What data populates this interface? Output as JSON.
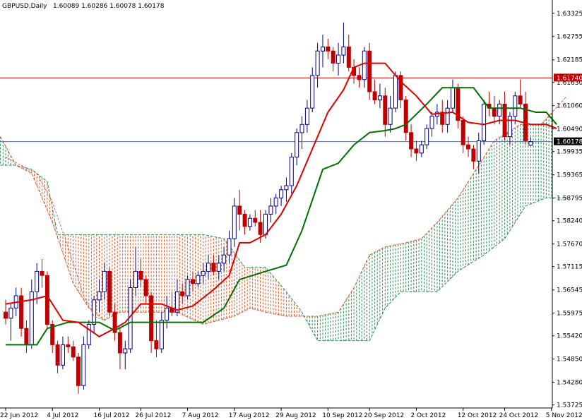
{
  "header": {
    "symbol": "GBPUSD,Daily",
    "ohlc": "1.60089 1.60286 1.60078 1.60178"
  },
  "colors": {
    "background": "#ffffff",
    "axis": "#000000",
    "bull_candle_body": "#ffffff",
    "bull_candle_border": "#00008b",
    "bear_candle_body": "#c00000",
    "bear_candle_border": "#c00000",
    "tenkan": "#e00000",
    "kijun": "#007000",
    "chikou_line": "#c86a5a",
    "cloud_bull": "#2e8b57",
    "cloud_bear": "#e05a2a",
    "hline": "#c00000",
    "price_line": "#5a6e9a",
    "price_tag_bg": "#000000",
    "hline_tag_bg": "#c00000"
  },
  "chart_data": {
    "type": "candlestick",
    "instrument": "GBPUSD",
    "timeframe": "Daily",
    "ylim": [
      1.5365,
      1.6365
    ],
    "y_ticks": [
      "1.63325",
      "1.62755",
      "1.62185",
      "1.61630",
      "1.61060",
      "1.60490",
      "1.59935",
      "1.59365",
      "1.58795",
      "1.58240",
      "1.57670",
      "1.57115",
      "1.56545",
      "1.55975",
      "1.55420",
      "1.54850",
      "1.54280",
      "1.53725"
    ],
    "x_ticks": [
      "22 Jun 2012",
      "4 Jul 2012",
      "16 Jul 2012",
      "26 Jul 2012",
      "7 Aug 2012",
      "17 Aug 2012",
      "29 Aug 2012",
      "10 Sep 2012",
      "20 Sep 2012",
      "2 Oct 2012",
      "12 Oct 2012",
      "24 Oct 2012",
      "5 Nov 2012"
    ],
    "x_tick_bars": [
      0,
      9,
      18,
      26,
      35,
      44,
      53,
      62,
      70,
      79,
      88,
      96,
      105
    ],
    "horizontal_line": {
      "value": 1.6174,
      "label": "1.61740"
    },
    "last_price": {
      "value": 1.60178,
      "label": "1.60178"
    },
    "candles": [
      {
        "o": 1.56,
        "h": 1.563,
        "l": 1.557,
        "c": 1.5585
      },
      {
        "o": 1.5585,
        "h": 1.562,
        "l": 1.553,
        "c": 1.561
      },
      {
        "o": 1.561,
        "h": 1.566,
        "l": 1.559,
        "c": 1.564
      },
      {
        "o": 1.564,
        "h": 1.566,
        "l": 1.554,
        "c": 1.556
      },
      {
        "o": 1.556,
        "h": 1.558,
        "l": 1.55,
        "c": 1.552
      },
      {
        "o": 1.552,
        "h": 1.568,
        "l": 1.551,
        "c": 1.565
      },
      {
        "o": 1.565,
        "h": 1.572,
        "l": 1.562,
        "c": 1.57
      },
      {
        "o": 1.57,
        "h": 1.573,
        "l": 1.566,
        "c": 1.569
      },
      {
        "o": 1.569,
        "h": 1.57,
        "l": 1.556,
        "c": 1.557
      },
      {
        "o": 1.557,
        "h": 1.558,
        "l": 1.55,
        "c": 1.552
      },
      {
        "o": 1.552,
        "h": 1.553,
        "l": 1.545,
        "c": 1.547
      },
      {
        "o": 1.547,
        "h": 1.554,
        "l": 1.546,
        "c": 1.552
      },
      {
        "o": 1.552,
        "h": 1.554,
        "l": 1.55,
        "c": 1.5515
      },
      {
        "o": 1.5515,
        "h": 1.553,
        "l": 1.548,
        "c": 1.549
      },
      {
        "o": 1.549,
        "h": 1.55,
        "l": 1.54,
        "c": 1.542
      },
      {
        "o": 1.542,
        "h": 1.554,
        "l": 1.541,
        "c": 1.552
      },
      {
        "o": 1.552,
        "h": 1.558,
        "l": 1.551,
        "c": 1.557
      },
      {
        "o": 1.557,
        "h": 1.564,
        "l": 1.555,
        "c": 1.563
      },
      {
        "o": 1.563,
        "h": 1.568,
        "l": 1.56,
        "c": 1.565
      },
      {
        "o": 1.565,
        "h": 1.572,
        "l": 1.563,
        "c": 1.57
      },
      {
        "o": 1.57,
        "h": 1.571,
        "l": 1.559,
        "c": 1.56
      },
      {
        "o": 1.56,
        "h": 1.562,
        "l": 1.553,
        "c": 1.555
      },
      {
        "o": 1.555,
        "h": 1.556,
        "l": 1.546,
        "c": 1.55
      },
      {
        "o": 1.55,
        "h": 1.553,
        "l": 1.546,
        "c": 1.551
      },
      {
        "o": 1.551,
        "h": 1.568,
        "l": 1.55,
        "c": 1.566
      },
      {
        "o": 1.566,
        "h": 1.576,
        "l": 1.564,
        "c": 1.57
      },
      {
        "o": 1.57,
        "h": 1.573,
        "l": 1.566,
        "c": 1.568
      },
      {
        "o": 1.568,
        "h": 1.569,
        "l": 1.562,
        "c": 1.564
      },
      {
        "o": 1.564,
        "h": 1.565,
        "l": 1.55,
        "c": 1.553
      },
      {
        "o": 1.553,
        "h": 1.558,
        "l": 1.549,
        "c": 1.551
      },
      {
        "o": 1.551,
        "h": 1.56,
        "l": 1.55,
        "c": 1.558
      },
      {
        "o": 1.558,
        "h": 1.564,
        "l": 1.556,
        "c": 1.561
      },
      {
        "o": 1.561,
        "h": 1.565,
        "l": 1.559,
        "c": 1.56
      },
      {
        "o": 1.56,
        "h": 1.568,
        "l": 1.559,
        "c": 1.565
      },
      {
        "o": 1.565,
        "h": 1.567,
        "l": 1.562,
        "c": 1.564
      },
      {
        "o": 1.564,
        "h": 1.569,
        "l": 1.563,
        "c": 1.568
      },
      {
        "o": 1.568,
        "h": 1.57,
        "l": 1.565,
        "c": 1.567
      },
      {
        "o": 1.567,
        "h": 1.57,
        "l": 1.566,
        "c": 1.569
      },
      {
        "o": 1.569,
        "h": 1.572,
        "l": 1.567,
        "c": 1.57
      },
      {
        "o": 1.57,
        "h": 1.574,
        "l": 1.568,
        "c": 1.572
      },
      {
        "o": 1.572,
        "h": 1.574,
        "l": 1.569,
        "c": 1.57
      },
      {
        "o": 1.57,
        "h": 1.574,
        "l": 1.568,
        "c": 1.572
      },
      {
        "o": 1.572,
        "h": 1.576,
        "l": 1.57,
        "c": 1.574
      },
      {
        "o": 1.574,
        "h": 1.58,
        "l": 1.572,
        "c": 1.578
      },
      {
        "o": 1.578,
        "h": 1.588,
        "l": 1.576,
        "c": 1.586
      },
      {
        "o": 1.586,
        "h": 1.59,
        "l": 1.58,
        "c": 1.584
      },
      {
        "o": 1.584,
        "h": 1.585,
        "l": 1.579,
        "c": 1.581
      },
      {
        "o": 1.581,
        "h": 1.584,
        "l": 1.58,
        "c": 1.583
      },
      {
        "o": 1.583,
        "h": 1.585,
        "l": 1.581,
        "c": 1.582
      },
      {
        "o": 1.582,
        "h": 1.585,
        "l": 1.577,
        "c": 1.579
      },
      {
        "o": 1.579,
        "h": 1.585,
        "l": 1.578,
        "c": 1.584
      },
      {
        "o": 1.584,
        "h": 1.588,
        "l": 1.582,
        "c": 1.586
      },
      {
        "o": 1.586,
        "h": 1.589,
        "l": 1.584,
        "c": 1.588
      },
      {
        "o": 1.588,
        "h": 1.591,
        "l": 1.586,
        "c": 1.59
      },
      {
        "o": 1.59,
        "h": 1.593,
        "l": 1.587,
        "c": 1.591
      },
      {
        "o": 1.591,
        "h": 1.599,
        "l": 1.589,
        "c": 1.598
      },
      {
        "o": 1.598,
        "h": 1.605,
        "l": 1.596,
        "c": 1.604
      },
      {
        "o": 1.604,
        "h": 1.608,
        "l": 1.6,
        "c": 1.606
      },
      {
        "o": 1.606,
        "h": 1.612,
        "l": 1.604,
        "c": 1.61
      },
      {
        "o": 1.61,
        "h": 1.62,
        "l": 1.609,
        "c": 1.618
      },
      {
        "o": 1.618,
        "h": 1.626,
        "l": 1.615,
        "c": 1.624
      },
      {
        "o": 1.624,
        "h": 1.628,
        "l": 1.62,
        "c": 1.625
      },
      {
        "o": 1.625,
        "h": 1.627,
        "l": 1.622,
        "c": 1.624
      },
      {
        "o": 1.624,
        "h": 1.625,
        "l": 1.619,
        "c": 1.621
      },
      {
        "o": 1.621,
        "h": 1.626,
        "l": 1.618,
        "c": 1.623
      },
      {
        "o": 1.623,
        "h": 1.631,
        "l": 1.621,
        "c": 1.625
      },
      {
        "o": 1.625,
        "h": 1.628,
        "l": 1.619,
        "c": 1.62
      },
      {
        "o": 1.62,
        "h": 1.622,
        "l": 1.616,
        "c": 1.618
      },
      {
        "o": 1.618,
        "h": 1.62,
        "l": 1.615,
        "c": 1.617
      },
      {
        "o": 1.617,
        "h": 1.625,
        "l": 1.615,
        "c": 1.624
      },
      {
        "o": 1.624,
        "h": 1.626,
        "l": 1.612,
        "c": 1.614
      },
      {
        "o": 1.614,
        "h": 1.617,
        "l": 1.611,
        "c": 1.612
      },
      {
        "o": 1.612,
        "h": 1.616,
        "l": 1.61,
        "c": 1.613
      },
      {
        "o": 1.613,
        "h": 1.615,
        "l": 1.603,
        "c": 1.606
      },
      {
        "o": 1.606,
        "h": 1.613,
        "l": 1.604,
        "c": 1.61
      },
      {
        "o": 1.61,
        "h": 1.619,
        "l": 1.609,
        "c": 1.618
      },
      {
        "o": 1.618,
        "h": 1.619,
        "l": 1.61,
        "c": 1.612
      },
      {
        "o": 1.612,
        "h": 1.613,
        "l": 1.602,
        "c": 1.604
      },
      {
        "o": 1.604,
        "h": 1.606,
        "l": 1.598,
        "c": 1.6
      },
      {
        "o": 1.6,
        "h": 1.602,
        "l": 1.597,
        "c": 1.599
      },
      {
        "o": 1.599,
        "h": 1.602,
        "l": 1.598,
        "c": 1.601
      },
      {
        "o": 1.601,
        "h": 1.606,
        "l": 1.6,
        "c": 1.605
      },
      {
        "o": 1.605,
        "h": 1.609,
        "l": 1.603,
        "c": 1.608
      },
      {
        "o": 1.608,
        "h": 1.611,
        "l": 1.606,
        "c": 1.609
      },
      {
        "o": 1.609,
        "h": 1.612,
        "l": 1.604,
        "c": 1.606
      },
      {
        "o": 1.606,
        "h": 1.612,
        "l": 1.604,
        "c": 1.61
      },
      {
        "o": 1.61,
        "h": 1.617,
        "l": 1.609,
        "c": 1.615
      },
      {
        "o": 1.615,
        "h": 1.616,
        "l": 1.605,
        "c": 1.607
      },
      {
        "o": 1.607,
        "h": 1.608,
        "l": 1.599,
        "c": 1.601
      },
      {
        "o": 1.601,
        "h": 1.603,
        "l": 1.598,
        "c": 1.6
      },
      {
        "o": 1.6,
        "h": 1.601,
        "l": 1.595,
        "c": 1.597
      },
      {
        "o": 1.597,
        "h": 1.604,
        "l": 1.594,
        "c": 1.602
      },
      {
        "o": 1.602,
        "h": 1.612,
        "l": 1.601,
        "c": 1.611
      },
      {
        "o": 1.611,
        "h": 1.614,
        "l": 1.608,
        "c": 1.61
      },
      {
        "o": 1.61,
        "h": 1.613,
        "l": 1.606,
        "c": 1.608
      },
      {
        "o": 1.608,
        "h": 1.612,
        "l": 1.606,
        "c": 1.611
      },
      {
        "o": 1.611,
        "h": 1.614,
        "l": 1.602,
        "c": 1.603
      },
      {
        "o": 1.603,
        "h": 1.609,
        "l": 1.601,
        "c": 1.608
      },
      {
        "o": 1.608,
        "h": 1.614,
        "l": 1.606,
        "c": 1.613
      },
      {
        "o": 1.613,
        "h": 1.617,
        "l": 1.61,
        "c": 1.611
      },
      {
        "o": 1.611,
        "h": 1.614,
        "l": 1.601,
        "c": 1.602
      },
      {
        "o": 1.6009,
        "h": 1.60286,
        "l": 1.60078,
        "c": 1.60178
      }
    ],
    "tenkan": [
      {
        "x": 0,
        "y": 1.562
      },
      {
        "x": 5,
        "y": 1.563
      },
      {
        "x": 8,
        "y": 1.564
      },
      {
        "x": 11,
        "y": 1.558
      },
      {
        "x": 14,
        "y": 1.5575
      },
      {
        "x": 18,
        "y": 1.554
      },
      {
        "x": 21,
        "y": 1.556
      },
      {
        "x": 23,
        "y": 1.5575
      },
      {
        "x": 26,
        "y": 1.562
      },
      {
        "x": 30,
        "y": 1.562
      },
      {
        "x": 33,
        "y": 1.5605
      },
      {
        "x": 36,
        "y": 1.5615
      },
      {
        "x": 40,
        "y": 1.5655
      },
      {
        "x": 43,
        "y": 1.569
      },
      {
        "x": 45,
        "y": 1.577
      },
      {
        "x": 47,
        "y": 1.577
      },
      {
        "x": 50,
        "y": 1.579
      },
      {
        "x": 53,
        "y": 1.584
      },
      {
        "x": 56,
        "y": 1.591
      },
      {
        "x": 59,
        "y": 1.6
      },
      {
        "x": 62,
        "y": 1.609
      },
      {
        "x": 65,
        "y": 1.6145
      },
      {
        "x": 67,
        "y": 1.62
      },
      {
        "x": 69,
        "y": 1.621
      },
      {
        "x": 73,
        "y": 1.621
      },
      {
        "x": 76,
        "y": 1.6165
      },
      {
        "x": 79,
        "y": 1.613
      },
      {
        "x": 82,
        "y": 1.6085
      },
      {
        "x": 86,
        "y": 1.609
      },
      {
        "x": 89,
        "y": 1.6065
      },
      {
        "x": 92,
        "y": 1.606
      },
      {
        "x": 95,
        "y": 1.607
      },
      {
        "x": 98,
        "y": 1.607
      },
      {
        "x": 101,
        "y": 1.606
      },
      {
        "x": 104,
        "y": 1.606
      },
      {
        "x": 106,
        "y": 1.605
      }
    ],
    "kijun": [
      {
        "x": 0,
        "y": 1.552
      },
      {
        "x": 6,
        "y": 1.552
      },
      {
        "x": 8,
        "y": 1.556
      },
      {
        "x": 12,
        "y": 1.5575
      },
      {
        "x": 18,
        "y": 1.5575
      },
      {
        "x": 21,
        "y": 1.5555
      },
      {
        "x": 24,
        "y": 1.5575
      },
      {
        "x": 33,
        "y": 1.5575
      },
      {
        "x": 38,
        "y": 1.5575
      },
      {
        "x": 42,
        "y": 1.561
      },
      {
        "x": 45,
        "y": 1.568
      },
      {
        "x": 50,
        "y": 1.57
      },
      {
        "x": 54,
        "y": 1.5715
      },
      {
        "x": 57,
        "y": 1.58
      },
      {
        "x": 61,
        "y": 1.595
      },
      {
        "x": 64,
        "y": 1.5965
      },
      {
        "x": 67,
        "y": 1.601
      },
      {
        "x": 70,
        "y": 1.604
      },
      {
        "x": 73,
        "y": 1.6045
      },
      {
        "x": 75,
        "y": 1.605
      },
      {
        "x": 77,
        "y": 1.606
      },
      {
        "x": 81,
        "y": 1.611
      },
      {
        "x": 84,
        "y": 1.615
      },
      {
        "x": 86,
        "y": 1.615
      },
      {
        "x": 90,
        "y": 1.615
      },
      {
        "x": 93,
        "y": 1.61
      },
      {
        "x": 99,
        "y": 1.61
      },
      {
        "x": 102,
        "y": 1.609
      },
      {
        "x": 104,
        "y": 1.609
      },
      {
        "x": 106,
        "y": 1.606
      }
    ],
    "senkou_a": [
      {
        "x": -1,
        "y": 1.603
      },
      {
        "x": 2,
        "y": 1.596
      },
      {
        "x": 5,
        "y": 1.594
      },
      {
        "x": 9,
        "y": 1.582
      },
      {
        "x": 13,
        "y": 1.567
      },
      {
        "x": 16,
        "y": 1.561
      },
      {
        "x": 19,
        "y": 1.558
      },
      {
        "x": 22,
        "y": 1.56
      },
      {
        "x": 27,
        "y": 1.56
      },
      {
        "x": 33,
        "y": 1.56
      },
      {
        "x": 38,
        "y": 1.557
      },
      {
        "x": 44,
        "y": 1.559
      },
      {
        "x": 47,
        "y": 1.561
      },
      {
        "x": 50,
        "y": 1.56
      },
      {
        "x": 54,
        "y": 1.559
      },
      {
        "x": 60,
        "y": 1.559
      },
      {
        "x": 64,
        "y": 1.56
      },
      {
        "x": 67,
        "y": 1.566
      },
      {
        "x": 70,
        "y": 1.574
      },
      {
        "x": 73,
        "y": 1.576
      },
      {
        "x": 77,
        "y": 1.577
      },
      {
        "x": 80,
        "y": 1.578
      },
      {
        "x": 83,
        "y": 1.582
      },
      {
        "x": 87,
        "y": 1.588
      },
      {
        "x": 91,
        "y": 1.596
      },
      {
        "x": 94,
        "y": 1.602
      },
      {
        "x": 99,
        "y": 1.606
      },
      {
        "x": 103,
        "y": 1.606
      },
      {
        "x": 108,
        "y": 1.613
      }
    ],
    "senkou_b": [
      {
        "x": -1,
        "y": 1.596
      },
      {
        "x": 2,
        "y": 1.596
      },
      {
        "x": 5,
        "y": 1.595
      },
      {
        "x": 8,
        "y": 1.592
      },
      {
        "x": 10,
        "y": 1.579
      },
      {
        "x": 16,
        "y": 1.579
      },
      {
        "x": 22,
        "y": 1.579
      },
      {
        "x": 28,
        "y": 1.579
      },
      {
        "x": 34,
        "y": 1.579
      },
      {
        "x": 38,
        "y": 1.579
      },
      {
        "x": 42,
        "y": 1.578
      },
      {
        "x": 46,
        "y": 1.571
      },
      {
        "x": 50,
        "y": 1.571
      },
      {
        "x": 54,
        "y": 1.565
      },
      {
        "x": 57,
        "y": 1.56
      },
      {
        "x": 60,
        "y": 1.553
      },
      {
        "x": 64,
        "y": 1.553
      },
      {
        "x": 70,
        "y": 1.553
      },
      {
        "x": 73,
        "y": 1.561
      },
      {
        "x": 76,
        "y": 1.565
      },
      {
        "x": 79,
        "y": 1.565
      },
      {
        "x": 83,
        "y": 1.565
      },
      {
        "x": 87,
        "y": 1.57
      },
      {
        "x": 92,
        "y": 1.574
      },
      {
        "x": 96,
        "y": 1.578
      },
      {
        "x": 100,
        "y": 1.586
      },
      {
        "x": 104,
        "y": 1.588
      },
      {
        "x": 108,
        "y": 1.588
      }
    ],
    "chikou_steps": [
      {
        "x": 0,
        "y": 1.598
      },
      {
        "x": 3,
        "y": 1.596
      },
      {
        "x": 6,
        "y": 1.594
      },
      {
        "x": 9,
        "y": 1.587
      },
      {
        "x": 12,
        "y": 1.576
      },
      {
        "x": 15,
        "y": 1.564
      },
      {
        "x": 17,
        "y": 1.559
      },
      {
        "x": 19,
        "y": 1.558
      }
    ]
  }
}
